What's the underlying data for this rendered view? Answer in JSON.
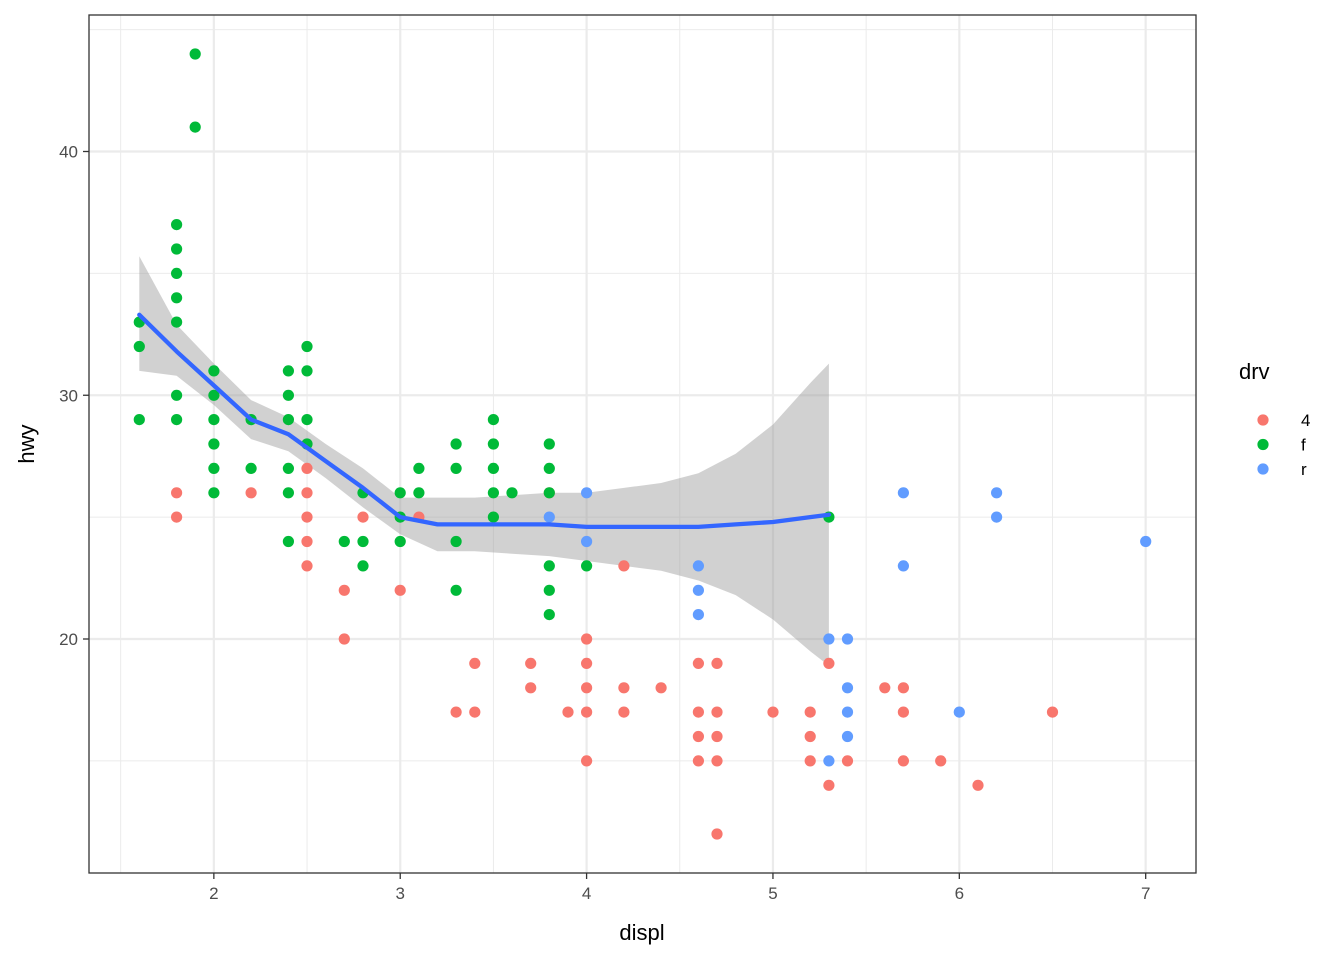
{
  "chart_data": {
    "type": "scatter",
    "title": "",
    "xlabel": "displ",
    "ylabel": "hwy",
    "xlim": [
      1.33,
      7.27
    ],
    "ylim": [
      10.4,
      45.6
    ],
    "x_ticks": [
      2,
      3,
      4,
      5,
      6,
      7
    ],
    "x_tick_labels": [
      "2",
      "3",
      "4",
      "5",
      "6",
      "7"
    ],
    "y_ticks": [
      20,
      30,
      40
    ],
    "y_tick_labels": [
      "20",
      "30",
      "40"
    ],
    "grid": true,
    "theme": "bw",
    "legend": {
      "title": "drv",
      "placement": "right",
      "entries": [
        {
          "label": "4",
          "color": "#F8766D"
        },
        {
          "label": "f",
          "color": "#00BA38"
        },
        {
          "label": "r",
          "color": "#619CFF"
        }
      ]
    },
    "series": [
      {
        "name": "4",
        "color": "#F8766D",
        "points": [
          [
            1.8,
            26
          ],
          [
            1.8,
            25
          ],
          [
            2.2,
            26
          ],
          [
            2.5,
            27
          ],
          [
            2.5,
            26
          ],
          [
            2.5,
            25
          ],
          [
            2.5,
            24
          ],
          [
            2.5,
            23
          ],
          [
            2.7,
            22
          ],
          [
            2.7,
            20
          ],
          [
            2.8,
            25
          ],
          [
            3.0,
            22
          ],
          [
            3.1,
            25
          ],
          [
            3.3,
            17
          ],
          [
            3.4,
            19
          ],
          [
            3.4,
            17
          ],
          [
            3.7,
            19
          ],
          [
            3.7,
            18
          ],
          [
            3.8,
            26
          ],
          [
            3.9,
            17
          ],
          [
            4.0,
            20
          ],
          [
            4.0,
            19
          ],
          [
            4.0,
            18
          ],
          [
            4.0,
            17
          ],
          [
            4.0,
            15
          ],
          [
            4.2,
            23
          ],
          [
            4.2,
            18
          ],
          [
            4.2,
            17
          ],
          [
            4.4,
            18
          ],
          [
            4.6,
            19
          ],
          [
            4.6,
            17
          ],
          [
            4.6,
            16
          ],
          [
            4.6,
            15
          ],
          [
            4.7,
            19
          ],
          [
            4.7,
            17
          ],
          [
            4.7,
            16
          ],
          [
            4.7,
            15
          ],
          [
            4.7,
            12
          ],
          [
            5.0,
            17
          ],
          [
            5.2,
            17
          ],
          [
            5.2,
            16
          ],
          [
            5.2,
            15
          ],
          [
            5.3,
            19
          ],
          [
            5.3,
            14
          ],
          [
            5.4,
            15
          ],
          [
            5.6,
            18
          ],
          [
            5.7,
            18
          ],
          [
            5.7,
            17
          ],
          [
            5.7,
            15
          ],
          [
            5.9,
            15
          ],
          [
            6.1,
            14
          ],
          [
            6.5,
            17
          ]
        ]
      },
      {
        "name": "f",
        "color": "#00BA38",
        "points": [
          [
            1.6,
            33
          ],
          [
            1.6,
            32
          ],
          [
            1.6,
            29
          ],
          [
            1.8,
            37
          ],
          [
            1.8,
            36
          ],
          [
            1.8,
            35
          ],
          [
            1.8,
            34
          ],
          [
            1.8,
            33
          ],
          [
            1.8,
            30
          ],
          [
            1.8,
            29
          ],
          [
            1.9,
            44
          ],
          [
            1.9,
            41
          ],
          [
            2.0,
            31
          ],
          [
            2.0,
            30
          ],
          [
            2.0,
            29
          ],
          [
            2.0,
            28
          ],
          [
            2.0,
            27
          ],
          [
            2.0,
            26
          ],
          [
            2.2,
            29
          ],
          [
            2.2,
            27
          ],
          [
            2.4,
            31
          ],
          [
            2.4,
            30
          ],
          [
            2.4,
            29
          ],
          [
            2.4,
            27
          ],
          [
            2.4,
            26
          ],
          [
            2.4,
            24
          ],
          [
            2.5,
            32
          ],
          [
            2.5,
            31
          ],
          [
            2.5,
            29
          ],
          [
            2.5,
            28
          ],
          [
            2.7,
            24
          ],
          [
            2.8,
            26
          ],
          [
            2.8,
            24
          ],
          [
            2.8,
            23
          ],
          [
            3.0,
            26
          ],
          [
            3.0,
            25
          ],
          [
            3.0,
            24
          ],
          [
            3.1,
            27
          ],
          [
            3.1,
            26
          ],
          [
            3.3,
            28
          ],
          [
            3.3,
            27
          ],
          [
            3.3,
            24
          ],
          [
            3.3,
            22
          ],
          [
            3.5,
            29
          ],
          [
            3.5,
            28
          ],
          [
            3.5,
            27
          ],
          [
            3.5,
            26
          ],
          [
            3.5,
            25
          ],
          [
            3.6,
            26
          ],
          [
            3.8,
            28
          ],
          [
            3.8,
            27
          ],
          [
            3.8,
            26
          ],
          [
            3.8,
            23
          ],
          [
            3.8,
            22
          ],
          [
            3.8,
            21
          ],
          [
            4.0,
            23
          ],
          [
            5.3,
            25
          ]
        ]
      },
      {
        "name": "r",
        "color": "#619CFF",
        "points": [
          [
            3.8,
            25
          ],
          [
            4.0,
            26
          ],
          [
            4.0,
            24
          ],
          [
            4.6,
            23
          ],
          [
            4.6,
            22
          ],
          [
            4.6,
            21
          ],
          [
            5.3,
            20
          ],
          [
            5.3,
            15
          ],
          [
            5.4,
            20
          ],
          [
            5.4,
            18
          ],
          [
            5.4,
            17
          ],
          [
            5.4,
            16
          ],
          [
            5.7,
            26
          ],
          [
            5.7,
            23
          ],
          [
            6.0,
            17
          ],
          [
            6.2,
            26
          ],
          [
            6.2,
            25
          ],
          [
            7.0,
            24
          ]
        ]
      }
    ],
    "smooth": {
      "method": "loess",
      "color": "#3366FF",
      "ribbon_color": "#999999",
      "points": [
        {
          "x": 1.6,
          "y": 33.3,
          "ymin": 31.0,
          "ymax": 35.7
        },
        {
          "x": 1.8,
          "y": 31.8,
          "ymin": 30.8,
          "ymax": 32.9
        },
        {
          "x": 2.0,
          "y": 30.4,
          "ymin": 29.6,
          "ymax": 31.3
        },
        {
          "x": 2.2,
          "y": 29.0,
          "ymin": 28.2,
          "ymax": 29.8
        },
        {
          "x": 2.4,
          "y": 28.4,
          "ymin": 27.7,
          "ymax": 29.1
        },
        {
          "x": 2.6,
          "y": 27.3,
          "ymin": 26.6,
          "ymax": 28.0
        },
        {
          "x": 2.8,
          "y": 26.2,
          "ymin": 25.4,
          "ymax": 27.0
        },
        {
          "x": 3.0,
          "y": 25.0,
          "ymin": 24.3,
          "ymax": 25.8
        },
        {
          "x": 3.2,
          "y": 24.7,
          "ymin": 23.6,
          "ymax": 25.8
        },
        {
          "x": 3.4,
          "y": 24.7,
          "ymin": 23.6,
          "ymax": 25.8
        },
        {
          "x": 3.6,
          "y": 24.7,
          "ymin": 23.5,
          "ymax": 25.9
        },
        {
          "x": 3.8,
          "y": 24.7,
          "ymin": 23.4,
          "ymax": 26.0
        },
        {
          "x": 4.0,
          "y": 24.6,
          "ymin": 23.2,
          "ymax": 26.0
        },
        {
          "x": 4.2,
          "y": 24.6,
          "ymin": 23.0,
          "ymax": 26.2
        },
        {
          "x": 4.4,
          "y": 24.6,
          "ymin": 22.8,
          "ymax": 26.4
        },
        {
          "x": 4.6,
          "y": 24.6,
          "ymin": 22.4,
          "ymax": 26.8
        },
        {
          "x": 4.8,
          "y": 24.7,
          "ymin": 21.8,
          "ymax": 27.6
        },
        {
          "x": 5.0,
          "y": 24.8,
          "ymin": 20.8,
          "ymax": 28.8
        },
        {
          "x": 5.2,
          "y": 25.0,
          "ymin": 19.5,
          "ymax": 30.5
        },
        {
          "x": 5.3,
          "y": 25.1,
          "ymin": 18.9,
          "ymax": 31.3
        }
      ]
    }
  }
}
